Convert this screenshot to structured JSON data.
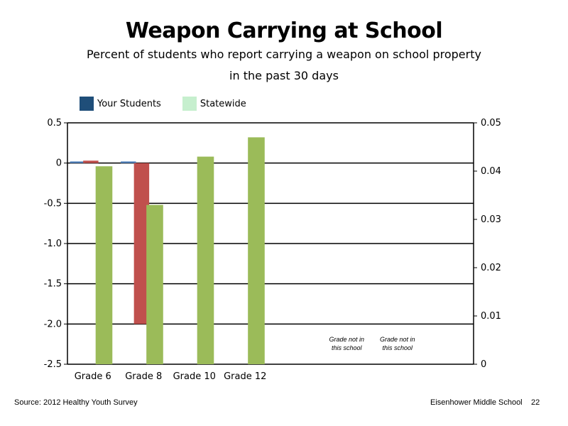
{
  "title": "Weapon Carrying at School",
  "subtitle_line1": "Percent of students who report carrying a weapon on school property",
  "subtitle_line2": "in the past 30 days",
  "legend": [
    {
      "label": "Your Students",
      "color": "#1f4e79"
    },
    {
      "label": "Statewide",
      "color": "#c6efce"
    }
  ],
  "footer": {
    "source": "Source: 2012 Healthy Youth Survey",
    "school": "Eisenhower Middle  School",
    "page": "22"
  },
  "chart_data": {
    "type": "bar",
    "categories": [
      "Grade 6",
      "Grade 8",
      "Grade 10",
      "Grade 12"
    ],
    "left_axis": {
      "ylim": [
        -2.5,
        0.5
      ],
      "ticks": [
        "0.5",
        "0",
        "-0.5",
        "-1.0",
        "-1.5",
        "-2.0",
        "-2.5"
      ],
      "tick_values": [
        0.5,
        0,
        -0.5,
        -1.0,
        -1.5,
        -2.0,
        -2.5
      ]
    },
    "right_axis": {
      "ylim": [
        0,
        0.05
      ],
      "ticks": [
        "0.05",
        "0.04",
        "0.03",
        "0.02",
        "0.01",
        "0"
      ],
      "tick_values": [
        0.05,
        0.04,
        0.03,
        0.02,
        0.01,
        0
      ]
    },
    "series": [
      {
        "color": "#4f81bd",
        "axis": "left",
        "values": [
          0.02,
          0.02,
          null,
          null
        ]
      },
      {
        "color": "#c0504d",
        "axis": "left",
        "values": [
          0.03,
          -2.0,
          null,
          null
        ]
      },
      {
        "color": "#9bbb59",
        "axis": "right",
        "values": [
          0.041,
          0.033,
          0.043,
          0.047
        ]
      }
    ],
    "annotations": [
      {
        "text": "Grade not in this school",
        "line1": "Grade not in",
        "line2": "this school",
        "slot": 5
      },
      {
        "text": "Grade not in this school",
        "line1": "Grade not in",
        "line2": "this school",
        "slot": 6
      }
    ],
    "grid": true
  }
}
